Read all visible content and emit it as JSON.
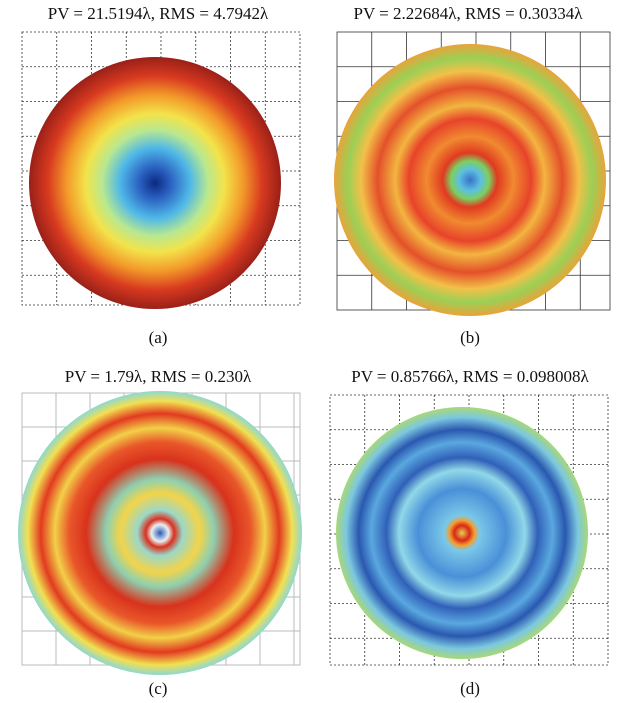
{
  "panels": [
    {
      "title": "PV = 21.5194λ, RMS = 4.7942λ",
      "caption": "(a)"
    },
    {
      "title": "PV = 2.22684λ, RMS = 0.30334λ",
      "caption": "(b)"
    },
    {
      "title": "PV = 1.79λ, RMS = 0.230λ",
      "caption": "(c)"
    },
    {
      "title": "PV = 0.85766λ, RMS = 0.098008λ",
      "caption": "(d)"
    }
  ]
}
